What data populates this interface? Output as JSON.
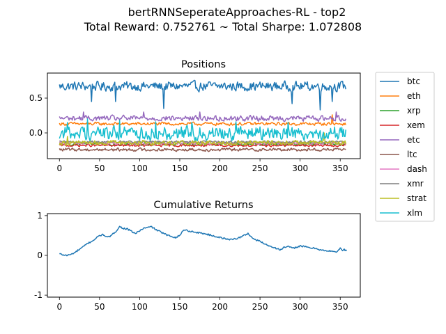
{
  "suptitle": {
    "line1": "bertRNNSeperateApproaches-RL - top2",
    "line2": "Total Reward: 0.752761 ~ Total Sharpe: 1.072808"
  },
  "colors": {
    "btc": "#1f77b4",
    "eth": "#ff7f0e",
    "xrp": "#2ca02c",
    "xem": "#d62728",
    "etc": "#9467bd",
    "ltc": "#8c564b",
    "dash": "#e377c2",
    "xmr": "#7f7f7f",
    "strat": "#bcbd22",
    "xlm": "#17becf"
  },
  "chart_data": [
    {
      "type": "line",
      "title": "Positions",
      "xlim": [
        -15,
        375
      ],
      "ylim": [
        -0.37,
        0.86
      ],
      "x_ticks": [
        0,
        50,
        100,
        150,
        200,
        250,
        300,
        350
      ],
      "y_ticks": [
        0.0,
        0.5
      ],
      "x_count": 358,
      "legend": "outside-right",
      "series": [
        {
          "name": "btc",
          "level": 0.67,
          "noise": 0.06,
          "spikes": [
            [
              40,
              0.45
            ],
            [
              70,
              0.45
            ],
            [
              130,
              0.35
            ],
            [
              290,
              0.42
            ],
            [
              325,
              0.33
            ],
            [
              340,
              0.45
            ]
          ]
        },
        {
          "name": "eth",
          "level": 0.13,
          "noise": 0.02,
          "spikes": [
            [
              340,
              0.26
            ]
          ]
        },
        {
          "name": "xrp",
          "level": -0.16,
          "noise": 0.02,
          "spikes": []
        },
        {
          "name": "xem",
          "level": -0.18,
          "noise": 0.015,
          "spikes": []
        },
        {
          "name": "etc",
          "level": 0.21,
          "noise": 0.035,
          "spikes": [
            [
              30,
              0.3
            ],
            [
              105,
              0.3
            ],
            [
              175,
              0.3
            ],
            [
              345,
              0.3
            ]
          ]
        },
        {
          "name": "ltc",
          "level": -0.24,
          "noise": 0.02,
          "spikes": []
        },
        {
          "name": "dash",
          "level": -0.15,
          "noise": 0.015,
          "spikes": []
        },
        {
          "name": "xmr",
          "level": -0.13,
          "noise": 0.015,
          "spikes": []
        },
        {
          "name": "strat",
          "level": -0.14,
          "noise": 0.03,
          "spikes": [
            [
              10,
              -0.05
            ],
            [
              330,
              0.0
            ]
          ]
        },
        {
          "name": "xlm",
          "level": 0.0,
          "noise": 0.09,
          "spikes": [
            [
              10,
              0.15
            ],
            [
              35,
              0.2
            ],
            [
              75,
              0.18
            ],
            [
              120,
              0.16
            ],
            [
              165,
              0.15
            ],
            [
              220,
              0.16
            ],
            [
              285,
              0.15
            ],
            [
              335,
              -0.08
            ]
          ]
        }
      ]
    },
    {
      "type": "line",
      "title": "Cumulative Returns",
      "xlim": [
        -15,
        375
      ],
      "ylim": [
        -1.05,
        1.05
      ],
      "x_ticks": [
        0,
        50,
        100,
        150,
        200,
        250,
        300,
        350
      ],
      "y_ticks": [
        -1,
        0,
        1
      ],
      "series": [
        {
          "name": "",
          "x": [
            0,
            5,
            10,
            15,
            20,
            25,
            30,
            35,
            40,
            45,
            50,
            55,
            60,
            65,
            70,
            75,
            80,
            85,
            90,
            95,
            100,
            105,
            110,
            115,
            120,
            125,
            130,
            135,
            140,
            145,
            150,
            155,
            160,
            170,
            180,
            190,
            200,
            210,
            220,
            225,
            230,
            235,
            240,
            245,
            250,
            255,
            260,
            265,
            270,
            275,
            280,
            285,
            290,
            295,
            300,
            305,
            310,
            315,
            320,
            325,
            330,
            335,
            340,
            345,
            350,
            352,
            355,
            358
          ],
          "y": [
            0.04,
            0.01,
            0.0,
            0.03,
            0.08,
            0.15,
            0.22,
            0.3,
            0.35,
            0.42,
            0.5,
            0.52,
            0.45,
            0.5,
            0.6,
            0.72,
            0.68,
            0.66,
            0.6,
            0.55,
            0.62,
            0.68,
            0.7,
            0.72,
            0.65,
            0.6,
            0.55,
            0.5,
            0.48,
            0.45,
            0.5,
            0.65,
            0.62,
            0.58,
            0.55,
            0.5,
            0.45,
            0.4,
            0.42,
            0.45,
            0.5,
            0.55,
            0.45,
            0.38,
            0.36,
            0.3,
            0.25,
            0.22,
            0.18,
            0.14,
            0.2,
            0.22,
            0.18,
            0.2,
            0.24,
            0.22,
            0.2,
            0.18,
            0.18,
            0.14,
            0.12,
            0.1,
            0.12,
            0.08,
            0.18,
            0.12,
            0.15,
            0.11
          ]
        }
      ]
    }
  ]
}
